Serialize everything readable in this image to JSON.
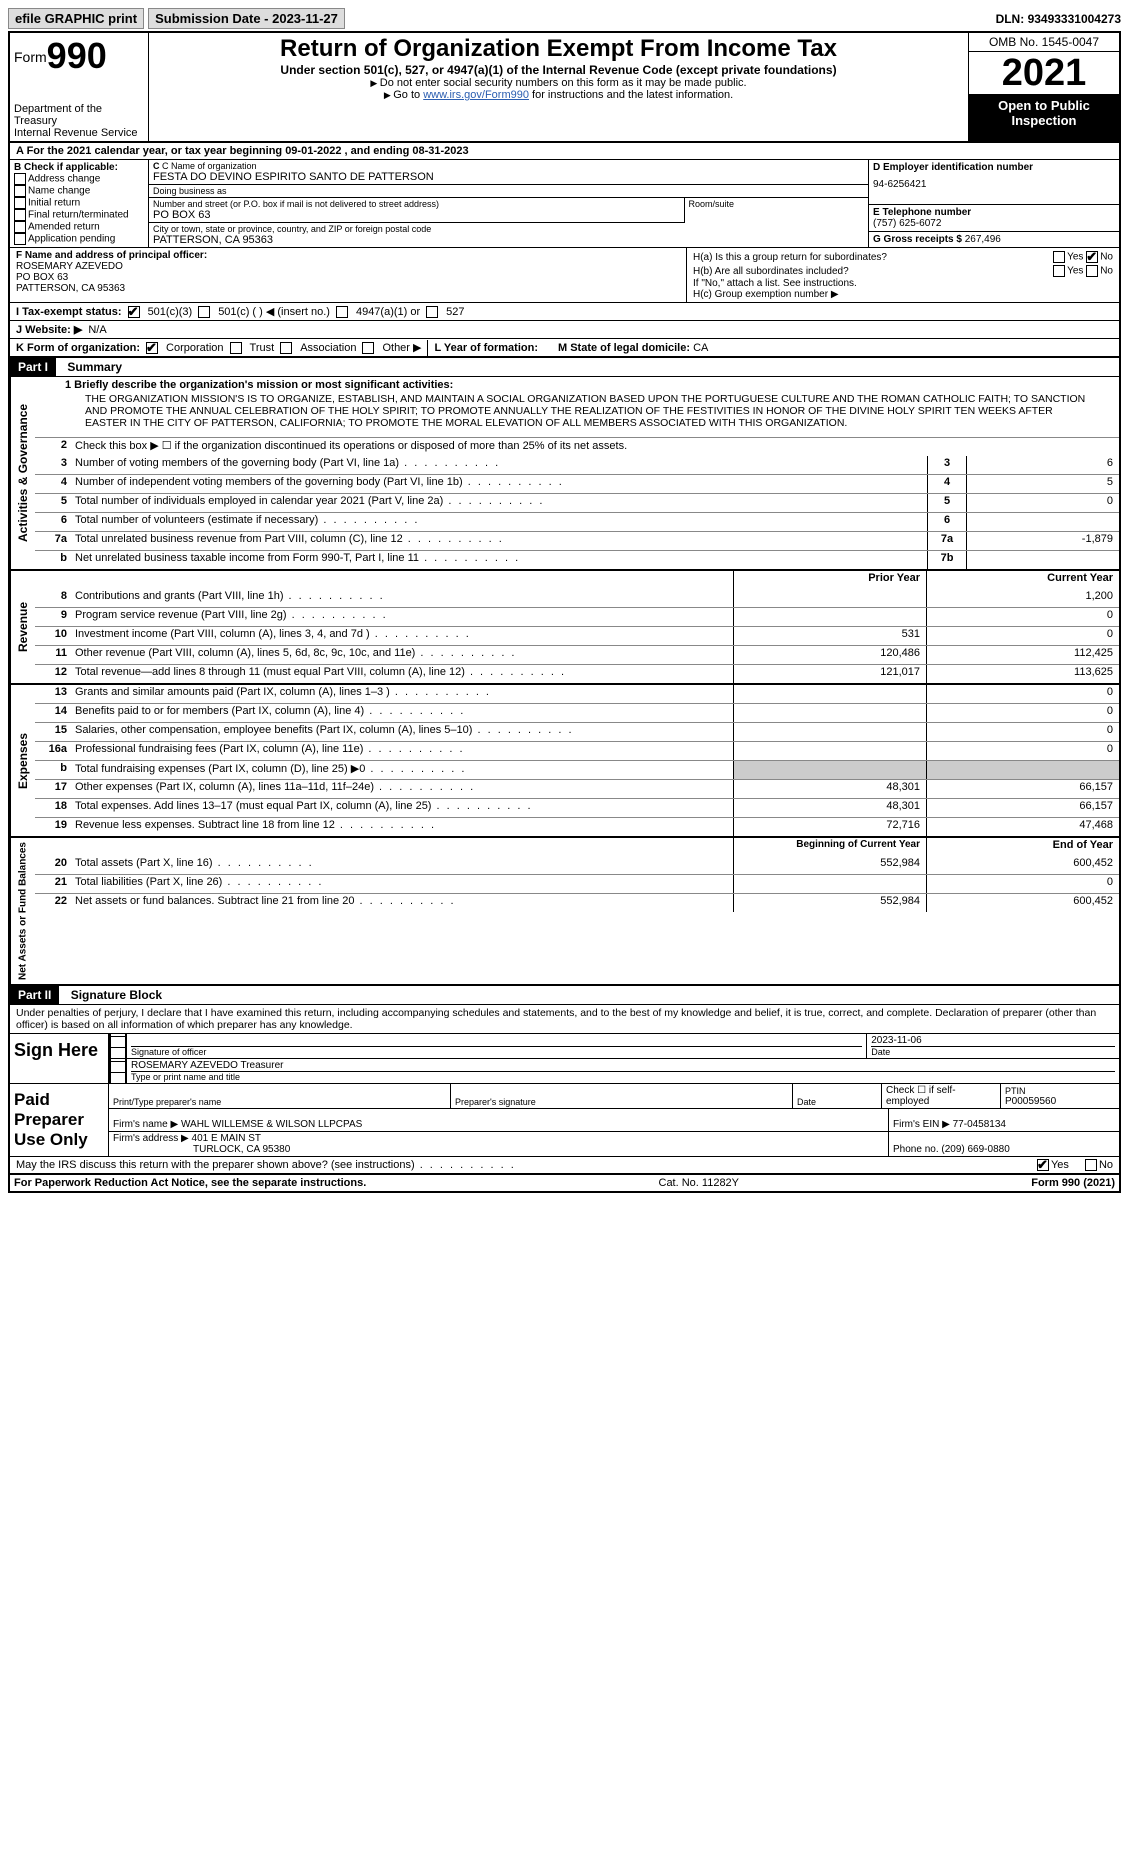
{
  "topbar": {
    "efile": "efile GRAPHIC print",
    "submission_label": "Submission Date - ",
    "submission_date": "2023-11-27",
    "dln_label": "DLN: ",
    "dln": "93493331004273"
  },
  "header": {
    "form_label": "Form",
    "form_number": "990",
    "dept": "Department of the Treasury",
    "irs": "Internal Revenue Service",
    "title": "Return of Organization Exempt From Income Tax",
    "subtitle": "Under section 501(c), 527, or 4947(a)(1) of the Internal Revenue Code (except private foundations)",
    "note1": "Do not enter social security numbers on this form as it may be made public.",
    "note2_pre": "Go to ",
    "note2_link": "www.irs.gov/Form990",
    "note2_post": " for instructions and the latest information.",
    "omb": "OMB No. 1545-0047",
    "year": "2021",
    "open_public": "Open to Public Inspection"
  },
  "row_a": "A For the 2021 calendar year, or tax year beginning 09-01-2022   , and ending 08-31-2023",
  "box_b": {
    "title": "B Check if applicable:",
    "items": [
      "Address change",
      "Name change",
      "Initial return",
      "Final return/terminated",
      "Amended return",
      "Application pending"
    ]
  },
  "box_c": {
    "name_label": "C Name of organization",
    "name": "FESTA DO DEVINO ESPIRITO SANTO DE PATTERSON",
    "dba_label": "Doing business as",
    "dba": "",
    "street_label": "Number and street (or P.O. box if mail is not delivered to street address)",
    "street": "PO BOX 63",
    "room_label": "Room/suite",
    "room": "",
    "city_label": "City or town, state or province, country, and ZIP or foreign postal code",
    "city": "PATTERSON, CA  95363"
  },
  "box_d": {
    "ein_label": "D Employer identification number",
    "ein": "94-6256421",
    "phone_label": "E Telephone number",
    "phone": "(757) 625-6072",
    "gross_label": "G Gross receipts $ ",
    "gross": "267,496"
  },
  "box_f": {
    "label": "F Name and address of principal officer:",
    "name": "ROSEMARY AZEVEDO",
    "addr1": "PO BOX 63",
    "addr2": "PATTERSON, CA  95363"
  },
  "box_h": {
    "ha_label": "H(a)  Is this a group return for subordinates?",
    "hb_label": "H(b)  Are all subordinates included?",
    "hb_note": "If \"No,\" attach a list. See instructions.",
    "hc_label": "H(c)  Group exemption number ▶",
    "yes": "Yes",
    "no": "No"
  },
  "row_i": {
    "label": "I  Tax-exempt status:",
    "opts": [
      "501(c)(3)",
      "501(c) (  ) ◀ (insert no.)",
      "4947(a)(1) or",
      "527"
    ]
  },
  "row_j": {
    "label": "J  Website: ▶",
    "value": "N/A"
  },
  "row_k": {
    "label": "K Form of organization:",
    "opts": [
      "Corporation",
      "Trust",
      "Association",
      "Other ▶"
    ],
    "l_label": "L Year of formation:",
    "l_value": "",
    "m_label": "M State of legal domicile: ",
    "m_value": "CA"
  },
  "part1": {
    "header": "Part I",
    "title": "Summary",
    "line1_label": "1  Briefly describe the organization's mission or most significant activities:",
    "mission": "THE ORGANIZATION MISSION'S IS TO ORGANIZE, ESTABLISH, AND MAINTAIN A SOCIAL ORGANIZATION BASED UPON THE PORTUGUESE CULTURE AND THE ROMAN CATHOLIC FAITH; TO SANCTION AND PROMOTE THE ANNUAL CELEBRATION OF THE HOLY SPIRIT; TO PROMOTE ANNUALLY THE REALIZATION OF THE FESTIVITIES IN HONOR OF THE DIVINE HOLY SPIRIT TEN WEEKS AFTER EASTER IN THE CITY OF PATTERSON, CALIFORNIA; TO PROMOTE THE MORAL ELEVATION OF ALL MEMBERS ASSOCIATED WITH THIS ORGANIZATION.",
    "line2": "Check this box ▶ ☐  if the organization discontinued its operations or disposed of more than 25% of its net assets.",
    "gov_lines": [
      {
        "n": "3",
        "d": "Number of voting members of the governing body (Part VI, line 1a)",
        "nc": "3",
        "v": "6"
      },
      {
        "n": "4",
        "d": "Number of independent voting members of the governing body (Part VI, line 1b)",
        "nc": "4",
        "v": "5"
      },
      {
        "n": "5",
        "d": "Total number of individuals employed in calendar year 2021 (Part V, line 2a)",
        "nc": "5",
        "v": "0"
      },
      {
        "n": "6",
        "d": "Total number of volunteers (estimate if necessary)",
        "nc": "6",
        "v": ""
      },
      {
        "n": "7a",
        "d": "Total unrelated business revenue from Part VIII, column (C), line 12",
        "nc": "7a",
        "v": "-1,879"
      },
      {
        "n": "b",
        "d": "Net unrelated business taxable income from Form 990-T, Part I, line 11",
        "nc": "7b",
        "v": ""
      }
    ],
    "rev_header": {
      "prior": "Prior Year",
      "current": "Current Year"
    },
    "revenue_side": "Revenue",
    "expenses_side": "Expenses",
    "gov_side": "Activities & Governance",
    "net_side": "Net Assets or Fund Balances",
    "rev_lines": [
      {
        "n": "8",
        "d": "Contributions and grants (Part VIII, line 1h)",
        "p": "",
        "c": "1,200"
      },
      {
        "n": "9",
        "d": "Program service revenue (Part VIII, line 2g)",
        "p": "",
        "c": "0"
      },
      {
        "n": "10",
        "d": "Investment income (Part VIII, column (A), lines 3, 4, and 7d )",
        "p": "531",
        "c": "0"
      },
      {
        "n": "11",
        "d": "Other revenue (Part VIII, column (A), lines 5, 6d, 8c, 9c, 10c, and 11e)",
        "p": "120,486",
        "c": "112,425"
      },
      {
        "n": "12",
        "d": "Total revenue—add lines 8 through 11 (must equal Part VIII, column (A), line 12)",
        "p": "121,017",
        "c": "113,625"
      }
    ],
    "exp_lines": [
      {
        "n": "13",
        "d": "Grants and similar amounts paid (Part IX, column (A), lines 1–3 )",
        "p": "",
        "c": "0"
      },
      {
        "n": "14",
        "d": "Benefits paid to or for members (Part IX, column (A), line 4)",
        "p": "",
        "c": "0"
      },
      {
        "n": "15",
        "d": "Salaries, other compensation, employee benefits (Part IX, column (A), lines 5–10)",
        "p": "",
        "c": "0"
      },
      {
        "n": "16a",
        "d": "Professional fundraising fees (Part IX, column (A), line 11e)",
        "p": "",
        "c": "0"
      },
      {
        "n": "b",
        "d": "Total fundraising expenses (Part IX, column (D), line 25) ▶0",
        "p": "shade",
        "c": "shade"
      },
      {
        "n": "17",
        "d": "Other expenses (Part IX, column (A), lines 11a–11d, 11f–24e)",
        "p": "48,301",
        "c": "66,157"
      },
      {
        "n": "18",
        "d": "Total expenses. Add lines 13–17 (must equal Part IX, column (A), line 25)",
        "p": "48,301",
        "c": "66,157"
      },
      {
        "n": "19",
        "d": "Revenue less expenses. Subtract line 18 from line 12",
        "p": "72,716",
        "c": "47,468"
      }
    ],
    "net_header": {
      "prior": "Beginning of Current Year",
      "current": "End of Year"
    },
    "net_lines": [
      {
        "n": "20",
        "d": "Total assets (Part X, line 16)",
        "p": "552,984",
        "c": "600,452"
      },
      {
        "n": "21",
        "d": "Total liabilities (Part X, line 26)",
        "p": "",
        "c": "0"
      },
      {
        "n": "22",
        "d": "Net assets or fund balances. Subtract line 21 from line 20",
        "p": "552,984",
        "c": "600,452"
      }
    ]
  },
  "part2": {
    "header": "Part II",
    "title": "Signature Block",
    "penalty": "Under penalties of perjury, I declare that I have examined this return, including accompanying schedules and statements, and to the best of my knowledge and belief, it is true, correct, and complete. Declaration of preparer (other than officer) is based on all information of which preparer has any knowledge.",
    "sign_here": "Sign Here",
    "sig_officer_label": "Signature of officer",
    "sig_date": "2023-11-06",
    "date_label": "Date",
    "name_title_label": "Type or print name and title",
    "name_title": "ROSEMARY AZEVEDO  Treasurer",
    "paid_prep": "Paid Preparer Use Only",
    "prep_name_label": "Print/Type preparer's name",
    "prep_name": "",
    "prep_sig_label": "Preparer's signature",
    "prep_date_label": "Date",
    "check_self_label": "Check ☐ if self-employed",
    "ptin_label": "PTIN",
    "ptin": "P00059560",
    "firm_name_label": "Firm's name    ▶ ",
    "firm_name": "WAHL WILLEMSE & WILSON LLPCPAS",
    "firm_ein_label": "Firm's EIN ▶ ",
    "firm_ein": "77-0458134",
    "firm_addr_label": "Firm's address ▶ ",
    "firm_addr": "401 E MAIN ST",
    "firm_city": "TURLOCK, CA  95380",
    "firm_phone_label": "Phone no. ",
    "firm_phone": "(209) 669-0880",
    "may_irs": "May the IRS discuss this return with the preparer shown above? (see instructions)",
    "yes": "Yes",
    "no": "No"
  },
  "footer": {
    "left": "For Paperwork Reduction Act Notice, see the separate instructions.",
    "mid": "Cat. No. 11282Y",
    "right_pre": "Form ",
    "right_num": "990",
    "right_post": " (2021)"
  }
}
